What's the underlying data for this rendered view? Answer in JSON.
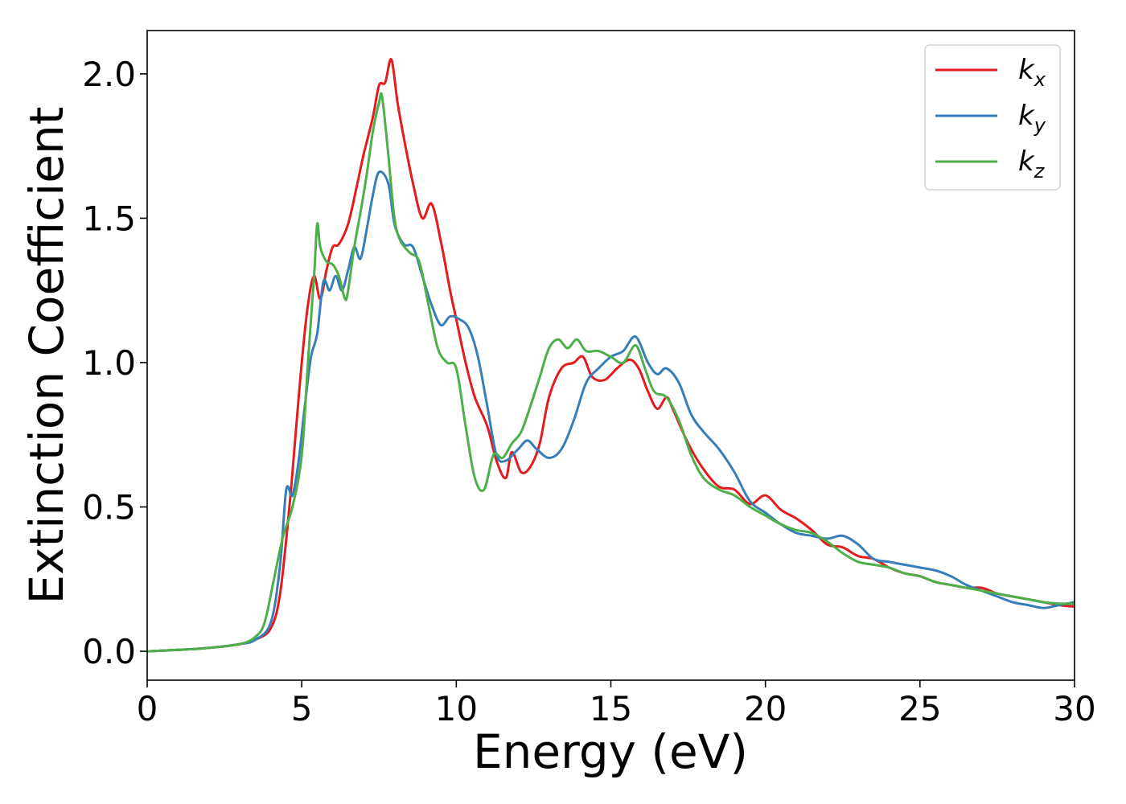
{
  "chart_data": {
    "type": "line",
    "xlabel": "Energy (eV)",
    "ylabel": "Extinction Coefficient",
    "xlim": [
      0,
      30
    ],
    "ylim": [
      -0.1,
      2.15
    ],
    "xticks": [
      "0",
      "5",
      "10",
      "15",
      "20",
      "25",
      "30"
    ],
    "yticks": [
      "0.0",
      "0.5",
      "1.0",
      "1.5",
      "2.0"
    ],
    "grid": false,
    "legend_position": "top-right",
    "series": [
      {
        "name": "k",
        "subscript": "x",
        "color": "#e41a1c",
        "x": [
          0,
          1,
          2,
          3,
          3.5,
          4,
          4.3,
          4.6,
          4.8,
          5.0,
          5.2,
          5.4,
          5.6,
          5.8,
          6.0,
          6.2,
          6.5,
          6.8,
          7.0,
          7.3,
          7.5,
          7.7,
          7.9,
          8.1,
          8.3,
          8.6,
          8.9,
          9.2,
          9.5,
          9.8,
          10.0,
          10.3,
          10.6,
          11.0,
          11.3,
          11.6,
          11.8,
          12.1,
          12.4,
          12.7,
          13.0,
          13.4,
          13.8,
          14.1,
          14.4,
          14.8,
          15.2,
          15.6,
          15.9,
          16.2,
          16.5,
          16.8,
          17.0,
          17.5,
          18.0,
          18.5,
          19.0,
          19.5,
          20.0,
          20.5,
          21.0,
          21.5,
          22.0,
          22.5,
          23.0,
          23.5,
          24.0,
          24.5,
          25.0,
          25.5,
          26.0,
          26.5,
          27.0,
          27.5,
          28.0,
          28.5,
          29.0,
          29.5,
          30.0
        ],
        "values": [
          0.0,
          0.005,
          0.012,
          0.025,
          0.04,
          0.08,
          0.2,
          0.5,
          0.75,
          1.0,
          1.2,
          1.3,
          1.22,
          1.32,
          1.4,
          1.41,
          1.48,
          1.62,
          1.72,
          1.85,
          1.96,
          1.97,
          2.05,
          1.9,
          1.78,
          1.62,
          1.5,
          1.55,
          1.42,
          1.25,
          1.15,
          1.0,
          0.88,
          0.78,
          0.66,
          0.6,
          0.69,
          0.62,
          0.64,
          0.72,
          0.88,
          0.98,
          1.0,
          1.02,
          0.95,
          0.94,
          0.98,
          1.01,
          0.98,
          0.9,
          0.84,
          0.88,
          0.84,
          0.72,
          0.63,
          0.57,
          0.56,
          0.51,
          0.54,
          0.49,
          0.46,
          0.42,
          0.37,
          0.36,
          0.33,
          0.32,
          0.29,
          0.27,
          0.26,
          0.24,
          0.23,
          0.22,
          0.22,
          0.2,
          0.19,
          0.18,
          0.17,
          0.16,
          0.155
        ]
      },
      {
        "name": "k",
        "subscript": "y",
        "color": "#377eb8",
        "x": [
          0,
          1,
          2,
          3,
          3.5,
          4,
          4.3,
          4.5,
          4.7,
          4.9,
          5.1,
          5.3,
          5.5,
          5.7,
          5.9,
          6.1,
          6.3,
          6.5,
          6.7,
          6.9,
          7.1,
          7.3,
          7.5,
          7.8,
          8.0,
          8.3,
          8.6,
          8.9,
          9.2,
          9.5,
          9.8,
          10.1,
          10.4,
          10.7,
          11.0,
          11.3,
          11.6,
          12.0,
          12.3,
          12.6,
          13.0,
          13.4,
          13.8,
          14.2,
          14.6,
          15.0,
          15.4,
          15.8,
          16.2,
          16.5,
          16.8,
          17.2,
          17.6,
          18.0,
          18.5,
          19.0,
          19.5,
          20.0,
          20.5,
          21.0,
          21.5,
          22.0,
          22.5,
          23.0,
          23.5,
          24.0,
          24.5,
          25.0,
          25.5,
          26.0,
          26.5,
          27.0,
          27.5,
          28.0,
          28.5,
          29.0,
          29.5,
          30.0
        ],
        "values": [
          0.0,
          0.005,
          0.012,
          0.025,
          0.04,
          0.1,
          0.3,
          0.56,
          0.54,
          0.66,
          0.85,
          1.02,
          1.1,
          1.28,
          1.25,
          1.3,
          1.25,
          1.32,
          1.4,
          1.36,
          1.46,
          1.58,
          1.66,
          1.62,
          1.48,
          1.41,
          1.4,
          1.3,
          1.2,
          1.13,
          1.16,
          1.15,
          1.12,
          1.02,
          0.85,
          0.68,
          0.66,
          0.7,
          0.73,
          0.7,
          0.67,
          0.7,
          0.8,
          0.93,
          0.98,
          1.02,
          1.04,
          1.09,
          1.0,
          0.96,
          0.98,
          0.93,
          0.82,
          0.76,
          0.7,
          0.62,
          0.52,
          0.48,
          0.44,
          0.41,
          0.4,
          0.39,
          0.4,
          0.37,
          0.32,
          0.31,
          0.3,
          0.29,
          0.28,
          0.26,
          0.23,
          0.21,
          0.19,
          0.17,
          0.16,
          0.15,
          0.16,
          0.17
        ]
      },
      {
        "name": "k",
        "subscript": "z",
        "color": "#4daf4a",
        "x": [
          0,
          1,
          2,
          3,
          3.5,
          3.8,
          4.1,
          4.4,
          4.7,
          5.0,
          5.2,
          5.4,
          5.5,
          5.6,
          5.8,
          6.0,
          6.2,
          6.4,
          6.5,
          6.7,
          6.9,
          7.1,
          7.3,
          7.5,
          7.6,
          7.8,
          8.0,
          8.2,
          8.5,
          8.8,
          9.1,
          9.4,
          9.7,
          10.0,
          10.3,
          10.6,
          10.9,
          11.2,
          11.5,
          11.8,
          12.1,
          12.4,
          12.7,
          13.0,
          13.3,
          13.6,
          13.9,
          14.2,
          14.6,
          15.0,
          15.4,
          15.8,
          16.1,
          16.4,
          16.8,
          17.2,
          17.6,
          18.0,
          18.5,
          19.0,
          19.5,
          20.0,
          20.5,
          21.0,
          21.5,
          22.0,
          22.5,
          23.0,
          23.5,
          24.0,
          24.5,
          25.0,
          25.5,
          26.0,
          26.5,
          27.0,
          27.5,
          28.0,
          28.5,
          29.0,
          29.5,
          30.0
        ],
        "values": [
          0.0,
          0.005,
          0.012,
          0.025,
          0.05,
          0.1,
          0.25,
          0.4,
          0.5,
          0.68,
          1.0,
          1.3,
          1.48,
          1.4,
          1.35,
          1.34,
          1.3,
          1.22,
          1.25,
          1.4,
          1.52,
          1.65,
          1.8,
          1.9,
          1.92,
          1.72,
          1.5,
          1.42,
          1.38,
          1.35,
          1.2,
          1.05,
          1.0,
          0.98,
          0.78,
          0.6,
          0.56,
          0.68,
          0.67,
          0.72,
          0.76,
          0.85,
          0.95,
          1.05,
          1.08,
          1.05,
          1.08,
          1.04,
          1.04,
          1.02,
          1.0,
          1.06,
          0.98,
          0.9,
          0.88,
          0.8,
          0.68,
          0.6,
          0.56,
          0.54,
          0.5,
          0.47,
          0.44,
          0.42,
          0.41,
          0.38,
          0.34,
          0.31,
          0.3,
          0.29,
          0.27,
          0.26,
          0.24,
          0.23,
          0.22,
          0.21,
          0.2,
          0.19,
          0.18,
          0.17,
          0.165,
          0.165
        ]
      }
    ]
  }
}
